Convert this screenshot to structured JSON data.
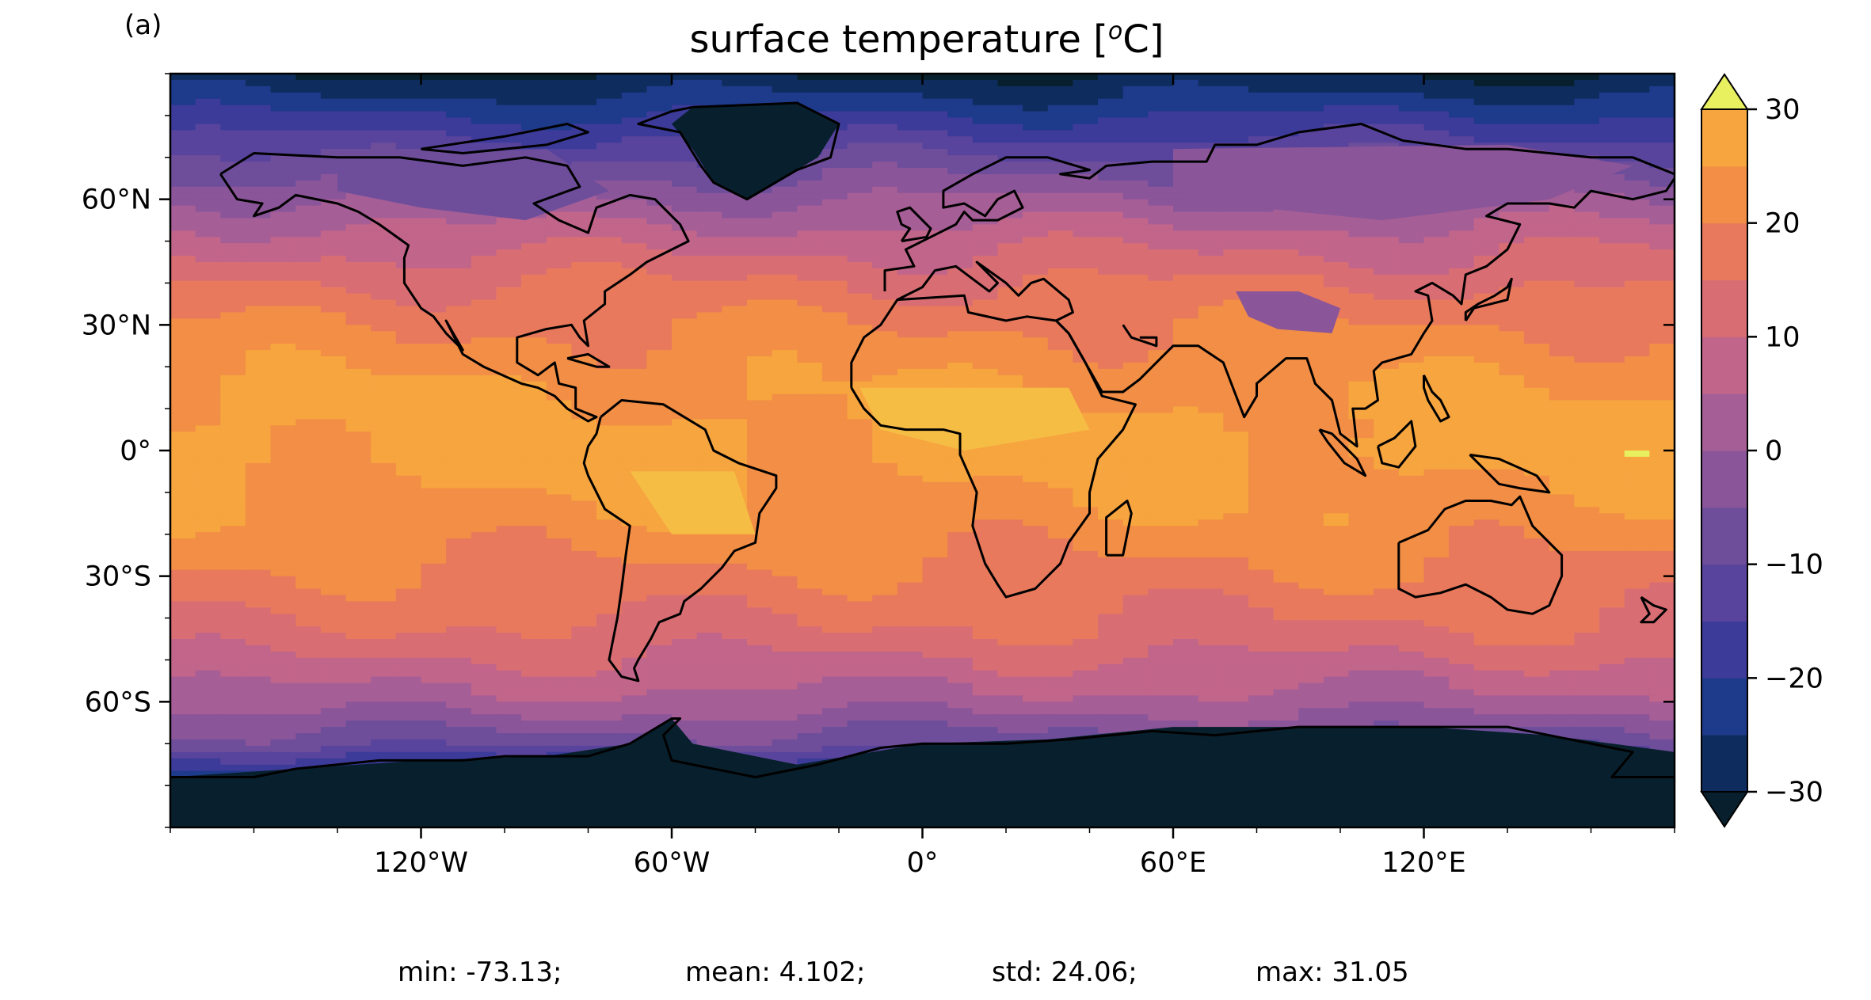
{
  "panel_label": "(a)",
  "title": {
    "prefix": "surface temperature [",
    "sup": "o",
    "suffix": "C]"
  },
  "stats": {
    "min": "min: -73.13;",
    "mean": "mean: 4.102;",
    "std": "std: 24.06;",
    "max": "max: 31.05"
  },
  "chart_data": {
    "type": "heatmap",
    "projection": "PlateCarree",
    "x_ticks": [
      "120°W",
      "60°W",
      "0°",
      "60°E",
      "120°E"
    ],
    "y_ticks": [
      "60°N",
      "30°N",
      "0°",
      "30°S",
      "60°S"
    ],
    "xlim": [
      -180,
      180
    ],
    "ylim": [
      -90,
      90
    ],
    "colorbar": {
      "ticks": [
        "30",
        "20",
        "10",
        "0",
        "−10",
        "−20",
        "−30"
      ],
      "range": [
        -30,
        30
      ],
      "step": 5,
      "extend": "both",
      "colors": [
        "#08202d",
        "#0e2d5e",
        "#1e3a8a",
        "#3c3b9a",
        "#58449c",
        "#6e4e9b",
        "#8a5599",
        "#a65e96",
        "#c2658a",
        "#d86e73",
        "#e8795d",
        "#f28e45",
        "#f6a53f",
        "#f6bd44",
        "#f2d548",
        "#e8f060"
      ]
    },
    "zonal_mean_profile": [
      {
        "lat": 90,
        "value": -30
      },
      {
        "lat": 80,
        "value": -20
      },
      {
        "lat": 70,
        "value": -10
      },
      {
        "lat": 60,
        "value": 0
      },
      {
        "lat": 50,
        "value": 8
      },
      {
        "lat": 40,
        "value": 15
      },
      {
        "lat": 30,
        "value": 20
      },
      {
        "lat": 15,
        "value": 25
      },
      {
        "lat": 0,
        "value": 27
      },
      {
        "lat": -15,
        "value": 24
      },
      {
        "lat": -30,
        "value": 19
      },
      {
        "lat": -45,
        "value": 13
      },
      {
        "lat": -60,
        "value": 3
      },
      {
        "lat": -70,
        "value": -8
      },
      {
        "lat": -80,
        "value": -30
      },
      {
        "lat": -90,
        "value": -30
      }
    ]
  }
}
